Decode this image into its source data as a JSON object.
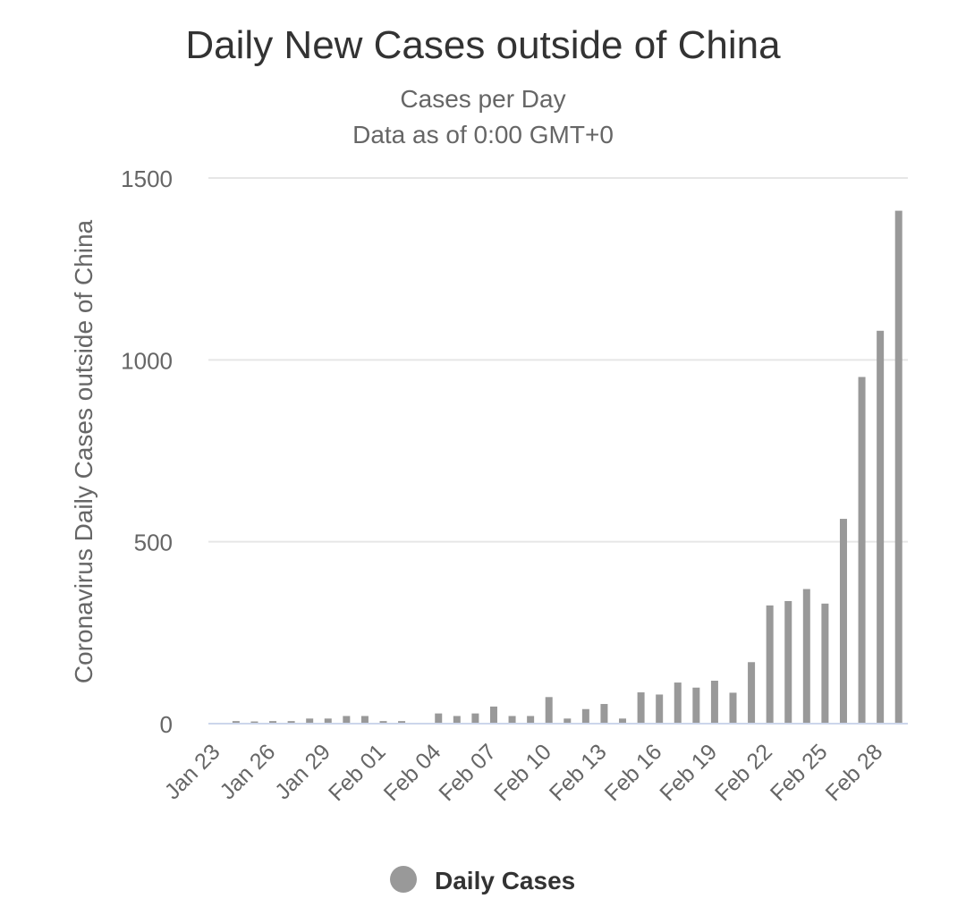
{
  "chart_data": {
    "type": "bar",
    "title": "Daily New Cases outside of China",
    "subtitle_lines": [
      "Cases per Day",
      "Data as of 0:00 GMT+0"
    ],
    "xlabel": "",
    "ylabel": "Coronavirus Daily Cases outside of China",
    "ylim": [
      0,
      1500
    ],
    "yticks": [
      0,
      500,
      1000,
      1500
    ],
    "grid": true,
    "legend_position": "bottom-center",
    "colors": {
      "bar": "#999999",
      "legend_marker": "#999999"
    },
    "categories": [
      "Jan 23",
      "Jan 24",
      "Jan 25",
      "Jan 26",
      "Jan 27",
      "Jan 28",
      "Jan 29",
      "Jan 30",
      "Jan 31",
      "Feb 01",
      "Feb 02",
      "Feb 03",
      "Feb 04",
      "Feb 05",
      "Feb 06",
      "Feb 07",
      "Feb 08",
      "Feb 09",
      "Feb 10",
      "Feb 11",
      "Feb 12",
      "Feb 13",
      "Feb 14",
      "Feb 15",
      "Feb 16",
      "Feb 17",
      "Feb 18",
      "Feb 19",
      "Feb 20",
      "Feb 21",
      "Feb 22",
      "Feb 23",
      "Feb 24",
      "Feb 25",
      "Feb 26",
      "Feb 27",
      "Feb 28",
      "Feb 29"
    ],
    "x_tick_labels": [
      "Jan 23",
      "Jan 26",
      "Jan 29",
      "Feb 01",
      "Feb 04",
      "Feb 07",
      "Feb 10",
      "Feb 13",
      "Feb 16",
      "Feb 19",
      "Feb 22",
      "Feb 25",
      "Feb 28"
    ],
    "series": [
      {
        "name": "Daily Cases",
        "values": [
          0,
          7,
          6,
          7,
          7,
          14,
          14,
          21,
          21,
          7,
          7,
          0,
          28,
          21,
          28,
          47,
          21,
          21,
          73,
          14,
          40,
          54,
          14,
          86,
          80,
          113,
          99,
          118,
          85,
          169,
          325,
          337,
          370,
          330,
          563,
          953,
          1080,
          1410
        ]
      }
    ]
  },
  "legend": {
    "label": "Daily Cases"
  }
}
